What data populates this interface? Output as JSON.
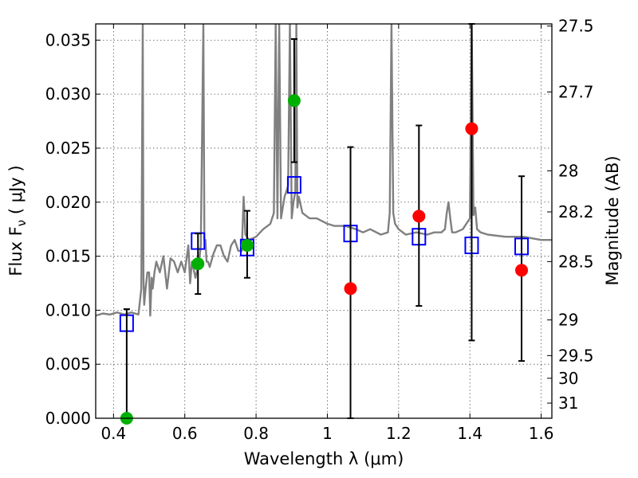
{
  "chart_data": {
    "type": "scatter",
    "xlabel": "Wavelength  λ (μm)",
    "ylabel": "Flux  F",
    "ylabel_sub": "ν",
    "ylabel_unit": "  ( μJy )",
    "y2label": "Magnitude (AB)",
    "xlim": [
      0.35,
      1.63
    ],
    "ylim": [
      0.0,
      0.0365
    ],
    "grid": true,
    "legend": "none",
    "x_ticks": [
      0.4,
      0.6,
      0.8,
      1.0,
      1.2,
      1.4,
      1.6
    ],
    "x_tick_labels": [
      "0.4",
      "0.6",
      "0.8",
      "1",
      "1.2",
      "1.4",
      "1.6"
    ],
    "y_ticks": [
      0.0,
      0.005,
      0.01,
      0.015,
      0.02,
      0.025,
      0.03,
      0.035
    ],
    "y_tick_labels": [
      "0.000",
      "0.005",
      "0.010",
      "0.015",
      "0.020",
      "0.025",
      "0.030",
      "0.035"
    ],
    "y2_ticks": [
      {
        "label": "27.5",
        "flux": 0.0363
      },
      {
        "label": "27.7",
        "flux": 0.0302
      },
      {
        "label": "28",
        "flux": 0.0229
      },
      {
        "label": "28.2",
        "flux": 0.0191
      },
      {
        "label": "28.5",
        "flux": 0.0145
      },
      {
        "label": "29",
        "flux": 0.0091
      },
      {
        "label": "29.5",
        "flux": 0.0058
      },
      {
        "label": "30",
        "flux": 0.0037
      },
      {
        "label": "31",
        "flux": 0.0014
      }
    ],
    "colors": {
      "model": "#808080",
      "errorbar": "#000000",
      "model_photometry": "#0000ff",
      "green_points": "#00b000",
      "red_points": "#ff0000",
      "grid": "#555555"
    },
    "series": [
      {
        "kind": "line",
        "color_key": "model",
        "x": [
          0.35,
          0.37,
          0.39,
          0.41,
          0.43,
          0.45,
          0.47,
          0.478,
          0.482,
          0.484,
          0.486,
          0.49,
          0.495,
          0.5,
          0.503,
          0.507,
          0.51,
          0.515,
          0.52,
          0.53,
          0.54,
          0.55,
          0.56,
          0.57,
          0.58,
          0.59,
          0.6,
          0.61,
          0.615,
          0.62,
          0.63,
          0.64,
          0.645,
          0.652,
          0.655,
          0.658,
          0.661,
          0.665,
          0.67,
          0.68,
          0.69,
          0.7,
          0.71,
          0.72,
          0.73,
          0.74,
          0.75,
          0.76,
          0.765,
          0.77,
          0.78,
          0.8,
          0.82,
          0.84,
          0.85,
          0.855,
          0.86,
          0.865,
          0.87,
          0.875,
          0.88,
          0.885,
          0.89,
          0.895,
          0.9,
          0.905,
          0.91,
          0.913,
          0.916,
          0.92,
          0.93,
          0.95,
          0.97,
          1.0,
          1.02,
          1.05,
          1.08,
          1.1,
          1.12,
          1.15,
          1.17,
          1.175,
          1.18,
          1.185,
          1.19,
          1.2,
          1.22,
          1.25,
          1.28,
          1.3,
          1.32,
          1.33,
          1.335,
          1.34,
          1.345,
          1.35,
          1.36,
          1.38,
          1.4,
          1.405,
          1.41,
          1.415,
          1.42,
          1.43,
          1.45,
          1.5,
          1.55,
          1.6,
          1.63
        ],
        "y": [
          0.0095,
          0.0097,
          0.0096,
          0.0098,
          0.0096,
          0.0098,
          0.0096,
          0.012,
          0.0365,
          0.013,
          0.0105,
          0.012,
          0.0135,
          0.0135,
          0.0095,
          0.013,
          0.012,
          0.0135,
          0.0145,
          0.0135,
          0.015,
          0.012,
          0.0148,
          0.0145,
          0.0135,
          0.0145,
          0.0135,
          0.016,
          0.0125,
          0.0145,
          0.013,
          0.0145,
          0.016,
          0.0365,
          0.0165,
          0.0165,
          0.0145,
          0.0145,
          0.014,
          0.0152,
          0.016,
          0.016,
          0.015,
          0.0145,
          0.016,
          0.0165,
          0.0155,
          0.0155,
          0.0205,
          0.017,
          0.0165,
          0.0168,
          0.0175,
          0.018,
          0.019,
          0.0365,
          0.0185,
          0.0365,
          0.0185,
          0.0195,
          0.0205,
          0.021,
          0.0215,
          0.0365,
          0.0185,
          0.02,
          0.021,
          0.0365,
          0.0195,
          0.0205,
          0.019,
          0.0185,
          0.0185,
          0.018,
          0.0178,
          0.0178,
          0.0175,
          0.0172,
          0.0175,
          0.017,
          0.0172,
          0.019,
          0.0365,
          0.019,
          0.018,
          0.0175,
          0.017,
          0.0172,
          0.017,
          0.0172,
          0.0172,
          0.0175,
          0.019,
          0.02,
          0.0185,
          0.0172,
          0.0172,
          0.0175,
          0.0185,
          0.0365,
          0.0188,
          0.0195,
          0.0175,
          0.0172,
          0.017,
          0.0168,
          0.0168,
          0.0165,
          0.0165
        ]
      },
      {
        "kind": "open_squares",
        "color_key": "model_photometry",
        "x": [
          0.437,
          0.637,
          0.775,
          0.907,
          1.065,
          1.257,
          1.405,
          1.545
        ],
        "y": [
          0.0088,
          0.0164,
          0.0158,
          0.0216,
          0.0171,
          0.0168,
          0.016,
          0.0159
        ]
      },
      {
        "kind": "filled_circles",
        "color_key": "green_points",
        "x": [
          0.437,
          0.637,
          0.775,
          0.907
        ],
        "y": [
          0.0,
          0.0143,
          0.016,
          0.0294
        ],
        "yerr_low": [
          0.0,
          0.0028,
          0.003,
          0.0057
        ],
        "yerr_high": [
          0.0101,
          0.0028,
          0.0032,
          0.0057
        ]
      },
      {
        "kind": "filled_circles",
        "color_key": "red_points",
        "x": [
          1.065,
          1.257,
          1.405,
          1.545
        ],
        "y": [
          0.012,
          0.0187,
          0.0268,
          0.0137
        ],
        "yerr_low": [
          0.012,
          0.0083,
          0.0196,
          0.0084
        ],
        "yerr_high": [
          0.0131,
          0.0084,
          0.0097,
          0.0087
        ]
      }
    ]
  }
}
